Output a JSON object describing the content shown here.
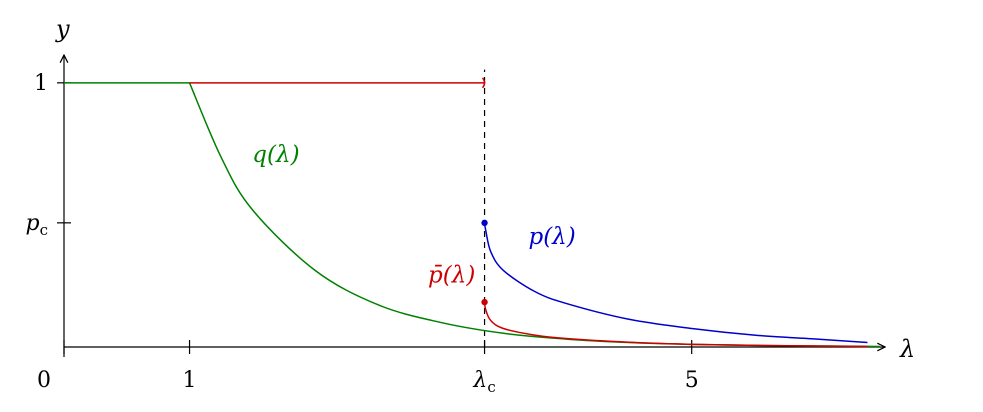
{
  "chart_data": {
    "type": "line",
    "title": "",
    "xlabel": "λ",
    "ylabel": "y",
    "xlim": [
      0,
      6.5
    ],
    "ylim": [
      0,
      1.2
    ],
    "x_ticks": [
      {
        "value": 0,
        "label": "0"
      },
      {
        "value": 1,
        "label": "1"
      },
      {
        "value": 3.35,
        "label": "λc"
      },
      {
        "value": 5,
        "label": "5"
      }
    ],
    "y_ticks": [
      {
        "value": 1,
        "label": "1"
      },
      {
        "value": 0.47,
        "label": "pc"
      }
    ],
    "critical_lambda": 3.35,
    "series": [
      {
        "name": "q(λ)",
        "color": "#008000",
        "x": [
          0,
          1,
          1.25,
          1.5,
          2,
          2.5,
          3,
          3.5,
          4,
          4.5,
          5,
          5.5,
          6,
          6.5
        ],
        "y": [
          1,
          1,
          0.72,
          0.52,
          0.29,
          0.16,
          0.093,
          0.052,
          0.03,
          0.017,
          0.01,
          0.006,
          0.004,
          0.002
        ]
      },
      {
        "name": "p(λ)",
        "color": "#0000cc",
        "x": [
          3.35,
          3.36,
          3.4,
          3.5,
          3.75,
          4,
          4.5,
          5,
          5.5,
          6,
          6.4
        ],
        "y": [
          0.47,
          0.44,
          0.36,
          0.29,
          0.21,
          0.165,
          0.105,
          0.07,
          0.045,
          0.03,
          0.017
        ]
      },
      {
        "name": "p̄(λ)",
        "color": "#cc0000",
        "x": [
          3.35,
          3.36,
          3.4,
          3.5,
          3.75,
          4,
          4.5,
          5,
          5.5,
          6,
          6.4
        ],
        "y": [
          0.17,
          0.14,
          0.1,
          0.07,
          0.045,
          0.032,
          0.018,
          0.01,
          0.006,
          0.004,
          0.002
        ]
      },
      {
        "name": "",
        "color": "#cc0000",
        "x": [
          1,
          3.35
        ],
        "y": [
          1,
          1
        ]
      }
    ],
    "series_labels": [
      {
        "text": "q(λ)",
        "x": 1.5,
        "y": 0.7,
        "color": "#008000"
      },
      {
        "text": "p(λ)",
        "x": 3.7,
        "y": 0.39,
        "color": "#0000cc"
      },
      {
        "text": "p̄(λ)",
        "x": 2.9,
        "y": 0.245,
        "color": "#cc0000"
      }
    ],
    "points": [
      {
        "name": "p-start-point",
        "x": 3.35,
        "y": 0.47,
        "color": "#0000cc"
      },
      {
        "name": "pbar-start-point",
        "x": 3.35,
        "y": 0.17,
        "color": "#cc0000"
      }
    ],
    "vertical_dashed_line": {
      "x": 3.35,
      "y_from": 0,
      "y_to": 1.05,
      "color": "#000000"
    },
    "grid": false,
    "legend": "none"
  }
}
